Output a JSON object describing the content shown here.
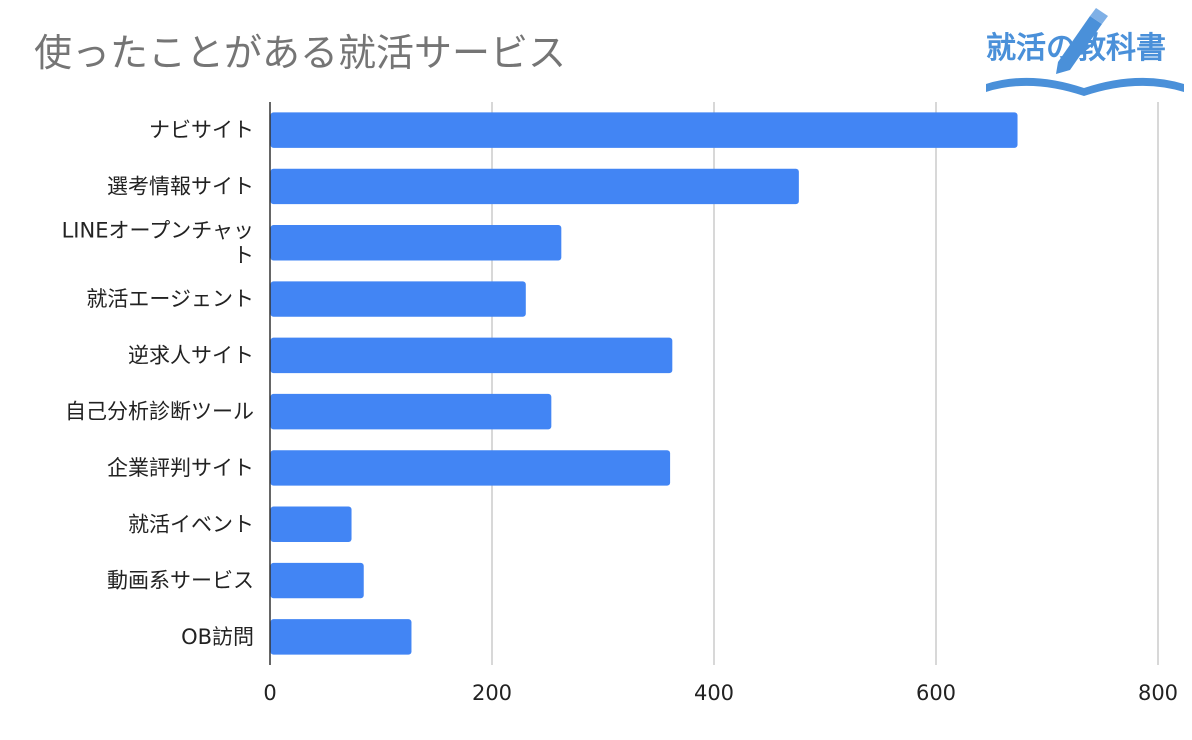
{
  "chart_data": {
    "type": "bar",
    "orientation": "horizontal",
    "title": "使ったことがある就活サービス",
    "categories": [
      "ナビサイト",
      "選考情報サイト",
      [
        "LINEオープンチャッ",
        "ト"
      ],
      "就活エージェント",
      "逆求人サイト",
      "自己分析診断ツール",
      "企業評判サイト",
      "就活イベント",
      "動画系サービス",
      "OB訪問"
    ],
    "values": [
      673,
      476,
      262,
      230,
      362,
      253,
      360,
      73,
      84,
      127
    ],
    "xlim": [
      0,
      800
    ],
    "xticks": [
      0,
      200,
      400,
      600,
      800
    ],
    "grid": "vertical",
    "bar_color": "#4285f4",
    "grid_color": "#cccccc"
  },
  "logo": {
    "text": "就活の教科書",
    "color": "#4a90d9"
  }
}
